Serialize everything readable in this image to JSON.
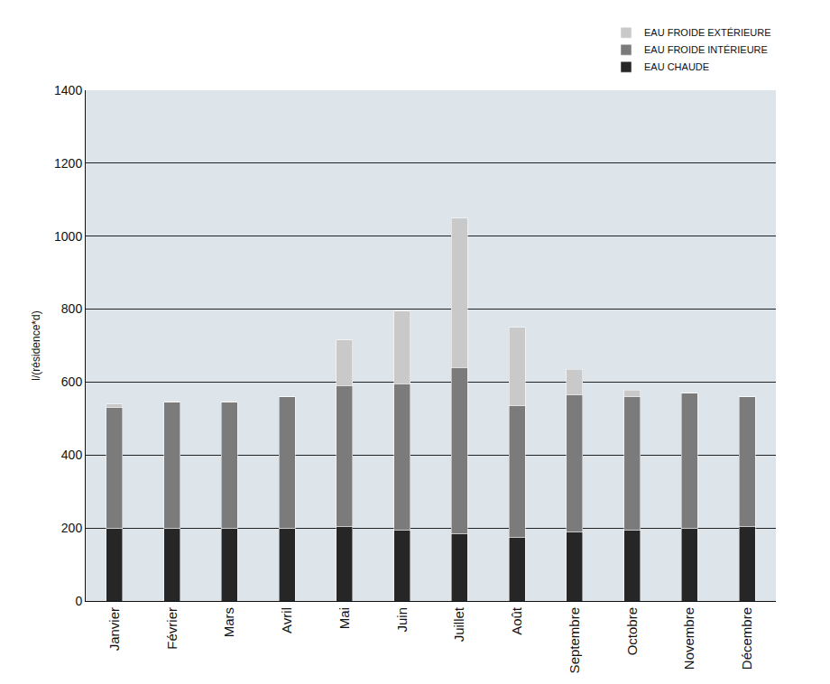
{
  "chart_data": {
    "type": "bar",
    "stacked": true,
    "y_label": "l/(résidence*d)",
    "categories": [
      "Janvier",
      "Février",
      "Mars",
      "Avril",
      "Mai",
      "Juin",
      "Juillet",
      "Août",
      "Septembre",
      "Octobre",
      "Novembre",
      "Décembre"
    ],
    "series": [
      {
        "name": "EAU CHAUDE",
        "color": "#262626",
        "values": [
          200,
          200,
          200,
          200,
          205,
          195,
          185,
          175,
          190,
          195,
          200,
          205
        ]
      },
      {
        "name": "EAU FROIDE INTÉRIEURE",
        "color": "#7b7b7b",
        "values": [
          330,
          345,
          345,
          360,
          385,
          400,
          455,
          360,
          375,
          365,
          370,
          355
        ]
      },
      {
        "name": "EAU FROIDE EXTÉRIEURE",
        "color": "#c9c9c9",
        "values": [
          10,
          0,
          0,
          0,
          125,
          200,
          410,
          215,
          70,
          18,
          0,
          0
        ]
      }
    ],
    "ylim": [
      0,
      1400
    ],
    "yticks": [
      0,
      200,
      400,
      600,
      800,
      1000,
      1200,
      1400
    ],
    "grid": true,
    "legend": "top right"
  }
}
